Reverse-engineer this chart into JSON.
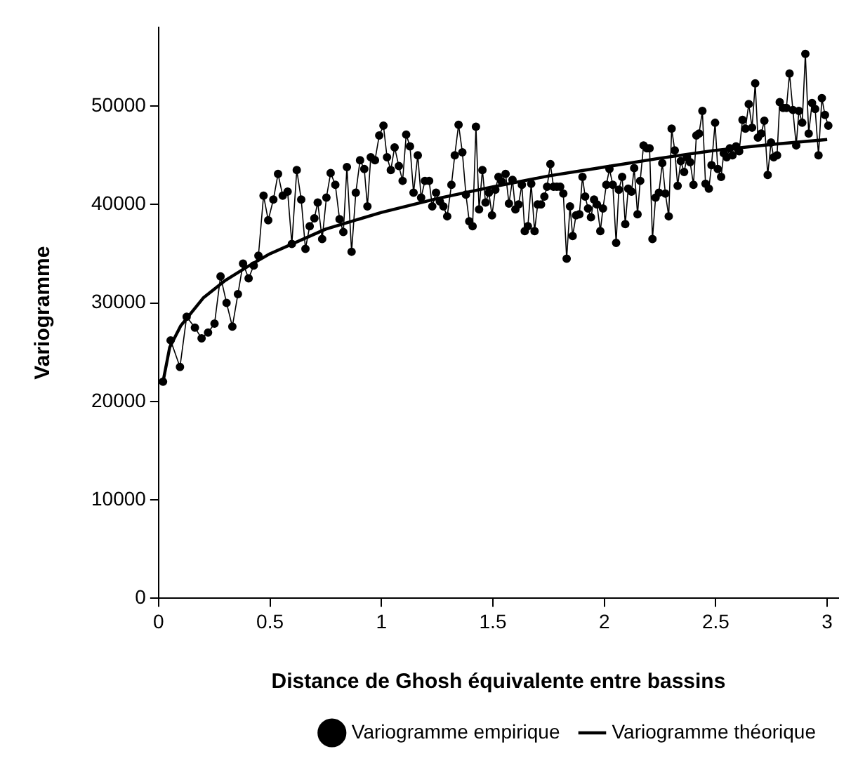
{
  "chart_data": {
    "type": "line",
    "xlabel": "Distance de Ghosh équivalente entre bassins",
    "ylabel": "Variogramme",
    "xlim": [
      0,
      3.05
    ],
    "xticks": [
      0,
      0.5,
      1,
      1.5,
      2,
      2.5,
      3
    ],
    "ylim": [
      0,
      58000
    ],
    "yticks": [
      0,
      10000,
      20000,
      30000,
      40000,
      50000
    ],
    "grid": false,
    "legend": "bottom right",
    "series": [
      {
        "name": "Variogramme empirique",
        "color": "#000000",
        "marker": "circle",
        "x": [
          0.02,
          0.054,
          0.096,
          0.126,
          0.163,
          0.193,
          0.222,
          0.251,
          0.278,
          0.305,
          0.331,
          0.356,
          0.379,
          0.404,
          0.427,
          0.448,
          0.471,
          0.492,
          0.515,
          0.536,
          0.557,
          0.579,
          0.598,
          0.62,
          0.64,
          0.659,
          0.678,
          0.699,
          0.714,
          0.734,
          0.753,
          0.772,
          0.793,
          0.812,
          0.829,
          0.845,
          0.866,
          0.885,
          0.904,
          0.923,
          0.937,
          0.952,
          0.971,
          0.99,
          1.009,
          1.025,
          1.042,
          1.059,
          1.078,
          1.095,
          1.111,
          1.128,
          1.144,
          1.163,
          1.178,
          1.195,
          1.214,
          1.228,
          1.245,
          1.262,
          1.278,
          1.295,
          1.314,
          1.329,
          1.346,
          1.363,
          1.379,
          1.394,
          1.409,
          1.424,
          1.438,
          1.453,
          1.467,
          1.482,
          1.496,
          1.511,
          1.525,
          1.54,
          1.557,
          1.572,
          1.588,
          1.601,
          1.615,
          1.63,
          1.643,
          1.657,
          1.672,
          1.687,
          1.701,
          1.716,
          1.731,
          1.743,
          1.758,
          1.772,
          1.787,
          1.802,
          1.816,
          1.831,
          1.846,
          1.858,
          1.873,
          1.888,
          1.902,
          1.914,
          1.927,
          1.94,
          1.954,
          1.967,
          1.982,
          1.994,
          2.009,
          2.023,
          2.038,
          2.053,
          2.065,
          2.08,
          2.094,
          2.107,
          2.122,
          2.134,
          2.149,
          2.161,
          2.176,
          2.191,
          2.203,
          2.216,
          2.23,
          2.245,
          2.26,
          2.274,
          2.289,
          2.302,
          2.316,
          2.329,
          2.343,
          2.358,
          2.371,
          2.385,
          2.4,
          2.413,
          2.425,
          2.44,
          2.454,
          2.469,
          2.481,
          2.497,
          2.509,
          2.524,
          2.536,
          2.549,
          2.563,
          2.575,
          2.591,
          2.605,
          2.62,
          2.633,
          2.648,
          2.663,
          2.677,
          2.689,
          2.704,
          2.718,
          2.733,
          2.748,
          2.76,
          2.775,
          2.787,
          2.802,
          2.817,
          2.831,
          2.846,
          2.861,
          2.873,
          2.888,
          2.902,
          2.917,
          2.932,
          2.946,
          2.961,
          2.976,
          2.99,
          3.005
        ],
        "values": [
          22000,
          26200,
          23500,
          28600,
          27500,
          26400,
          27000,
          27900,
          32700,
          30000,
          27600,
          30900,
          34000,
          32500,
          33800,
          34800,
          40900,
          38400,
          40500,
          43100,
          40900,
          41300,
          36000,
          43500,
          40500,
          35500,
          37800,
          38600,
          40200,
          36500,
          40700,
          43200,
          42000,
          38500,
          37200,
          43800,
          35200,
          41200,
          44500,
          43600,
          39800,
          44800,
          44500,
          47000,
          48000,
          44800,
          43500,
          45800,
          43900,
          42400,
          47100,
          45900,
          41200,
          45000,
          40700,
          42400,
          42400,
          39800,
          41200,
          40300,
          39800,
          38800,
          42000,
          45000,
          48100,
          45300,
          41000,
          38300,
          37800,
          47900,
          39500,
          43500,
          40200,
          41200,
          38900,
          41500,
          42800,
          42300,
          43100,
          40100,
          42500,
          39500,
          40000,
          42000,
          37300,
          37800,
          42100,
          37300,
          40000,
          40000,
          40800,
          41800,
          44100,
          41800,
          41800,
          41800,
          41100,
          34500,
          39800,
          36800,
          38900,
          39000,
          42800,
          40800,
          39600,
          38700,
          40500,
          40000,
          37300,
          39600,
          42000,
          43600,
          42000,
          36100,
          41500,
          42800,
          38000,
          41600,
          41300,
          43700,
          39000,
          42400,
          46000,
          45700,
          45700,
          36500,
          40700,
          41200,
          44200,
          41100,
          38800,
          47700,
          45500,
          41900,
          44400,
          43300,
          44800,
          44300,
          42000,
          47000,
          47200,
          49500,
          42100,
          41600,
          44000,
          48300,
          43600,
          42800,
          45200,
          44800,
          45700,
          45000,
          45900,
          45400,
          48600,
          47700,
          50200,
          47800,
          52300,
          46800,
          47200,
          48500,
          43000,
          46300,
          44800,
          45000,
          50400,
          49800,
          49800,
          53300,
          49600,
          46000,
          49500,
          48300,
          55300,
          47200,
          50300,
          49700,
          45000,
          50800,
          49100,
          48000
        ]
      },
      {
        "name": "Variogramme théorique",
        "color": "#000000",
        "marker": "none",
        "x": [
          0.02,
          0.05,
          0.1,
          0.2,
          0.3,
          0.4,
          0.5,
          0.75,
          1.0,
          1.25,
          1.5,
          1.75,
          2.0,
          2.25,
          2.5,
          2.75,
          3.0
        ],
        "values": [
          22000,
          25500,
          27700,
          30500,
          32300,
          33700,
          35000,
          37500,
          39200,
          40600,
          41800,
          42900,
          43800,
          44700,
          45500,
          46100,
          46600
        ]
      }
    ]
  }
}
